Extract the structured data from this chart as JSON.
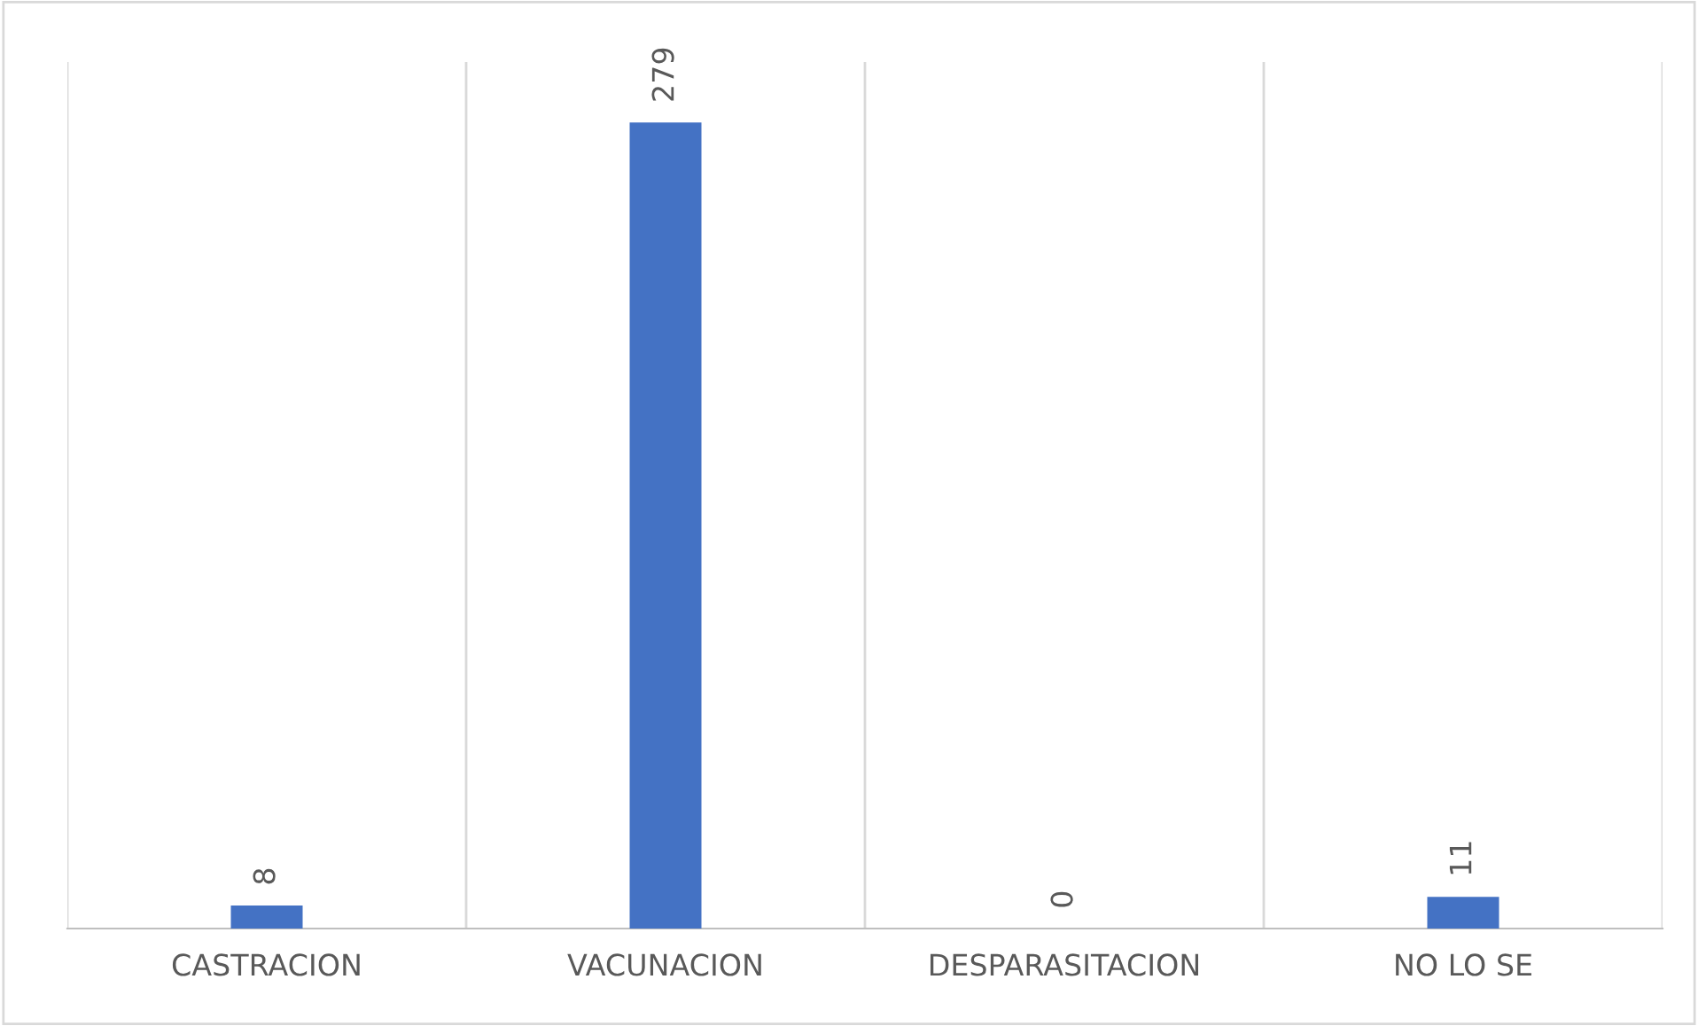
{
  "chart_data": {
    "type": "bar",
    "categories": [
      "CASTRACION",
      "VACUNACION",
      "DESPARASITACION",
      "NO LO SE"
    ],
    "values": [
      8,
      279,
      0,
      11
    ],
    "color": "#4472c4",
    "data_labels": true,
    "grid": "x"
  }
}
